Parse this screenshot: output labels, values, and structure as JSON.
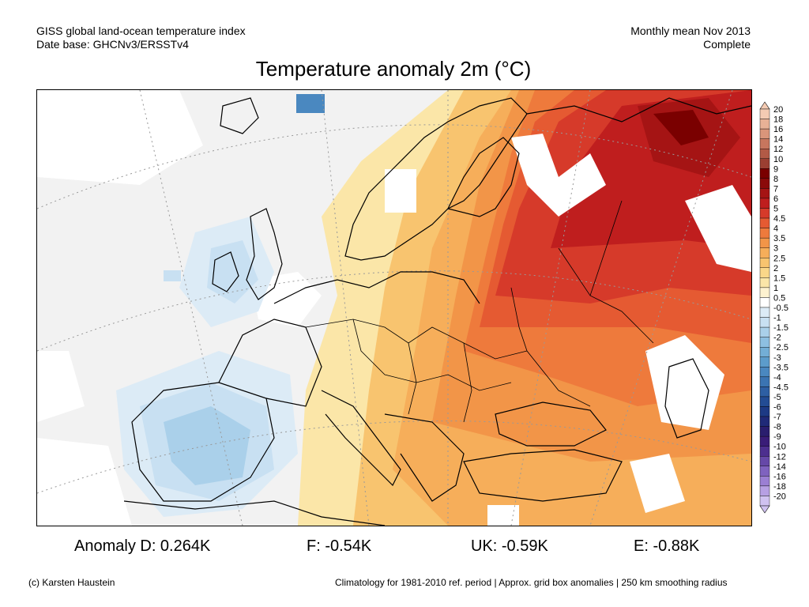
{
  "header": {
    "left_line1": "GISS global land-ocean temperature index",
    "left_line2": "Date base: GHCNv3/ERSSTv4",
    "right_line1": "Monthly mean Nov 2013",
    "right_line2": "Complete"
  },
  "title": "Temperature anomaly 2m (°C)",
  "colorbar": {
    "levels": [
      "20",
      "18",
      "16",
      "14",
      "12",
      "10",
      "9",
      "8",
      "7",
      "6",
      "5",
      "4.5",
      "4",
      "3.5",
      "3",
      "2.5",
      "2",
      "1.5",
      "1",
      "0.5",
      "-0.5",
      "-1",
      "-1.5",
      "-2",
      "-2.5",
      "-3",
      "-3.5",
      "-4",
      "-4.5",
      "-5",
      "-6",
      "-7",
      "-8",
      "-9",
      "-10",
      "-12",
      "-14",
      "-16",
      "-18",
      "-20"
    ],
    "colors": [
      "#f4cbb3",
      "#e8b196",
      "#d9957a",
      "#c7765e",
      "#b25a46",
      "#9b3f32",
      "#7a0000",
      "#8b0a0a",
      "#a51414",
      "#bf1e1e",
      "#d63a2a",
      "#e55a32",
      "#ee7a3c",
      "#f29548",
      "#f6ae5a",
      "#f8c46f",
      "#fad789",
      "#fbe6a8",
      "#fdf2d0",
      "#ffffff",
      "#dcebf6",
      "#c8e0f2",
      "#aad0ea",
      "#8dbfe1",
      "#73aed6",
      "#5c9ccb",
      "#4a88c0",
      "#3b74b2",
      "#2e5fa3",
      "#234c94",
      "#1d3a85",
      "#202a78",
      "#2a1e6e",
      "#3a1d78",
      "#4d2f8f",
      "#6648a8",
      "#7f62bf",
      "#9b7fd3",
      "#b7a0e3",
      "#d0c2f0"
    ]
  },
  "stats": {
    "d": "Anomaly D: 0.264K",
    "f": "F: -0.54K",
    "uk": "UK: -0.59K",
    "e": "E: -0.88K"
  },
  "footer": {
    "left": "(c) Karsten Haustein",
    "right": "Climatology for 1981-2010 ref. period | Approx. grid box anomalies | 250 km smoothing radius"
  }
}
